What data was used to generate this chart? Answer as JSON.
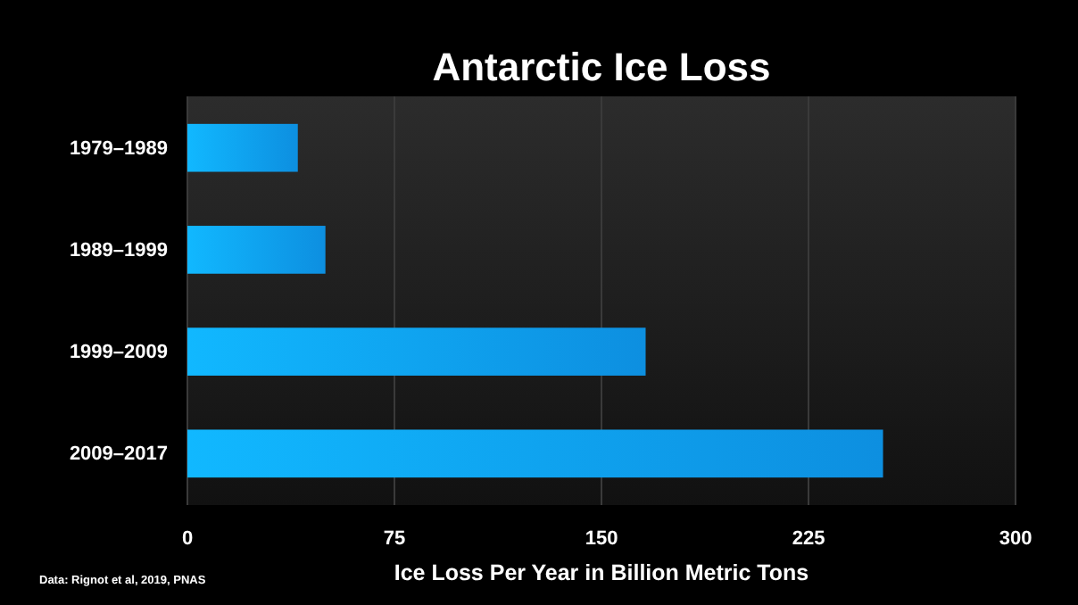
{
  "chart_data": {
    "type": "bar",
    "orientation": "horizontal",
    "title": "Antarctic Ice Loss",
    "xlabel": "Ice Loss Per Year in Billion Metric Tons",
    "categories": [
      "1979–1989",
      "1989–1999",
      "1999–2009",
      "2009–2017"
    ],
    "values": [
      40,
      50,
      166,
      252
    ],
    "color": "#0d8fe0",
    "xlim": [
      0,
      300
    ],
    "xticks": [
      0,
      75,
      150,
      225,
      300
    ],
    "grid": "x",
    "annotations": [
      "Data: Rignot et al, 2019, PNAS"
    ]
  }
}
